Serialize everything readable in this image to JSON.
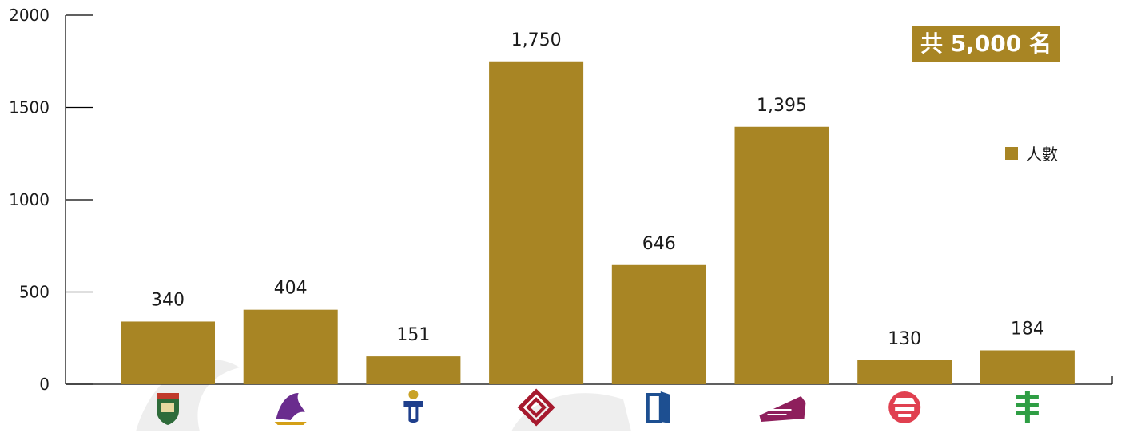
{
  "colors": {
    "bar": "#a88524",
    "axis": "#000000",
    "badge_bg": "#a88524",
    "badge_text": "#ffffff"
  },
  "badge": {
    "text": "共 5,000 名"
  },
  "chart_data": {
    "type": "bar",
    "categories": [
      "HKU",
      "CUHK",
      "HKUST",
      "PolyU",
      "HKBU",
      "CityU",
      "LingnanU",
      "EdUHK"
    ],
    "category_icons": [
      "hku-logo-icon",
      "cuhk-logo-icon",
      "hkust-logo-icon",
      "polyu-logo-icon",
      "hkbu-logo-icon",
      "cityu-logo-icon",
      "lingnan-logo-icon",
      "eduhk-logo-icon"
    ],
    "series": [
      {
        "name": "人數",
        "values": [
          340,
          404,
          151,
          1750,
          646,
          1395,
          130,
          184
        ],
        "labels": [
          "340",
          "404",
          "151",
          "1,750",
          "646",
          "1,395",
          "130",
          "184"
        ]
      }
    ],
    "ylim": [
      0,
      2000
    ],
    "yticks": [
      0,
      500,
      1000,
      1500,
      2000
    ],
    "grid": false,
    "legend_placement": "right",
    "xlabel": "",
    "ylabel": ""
  }
}
